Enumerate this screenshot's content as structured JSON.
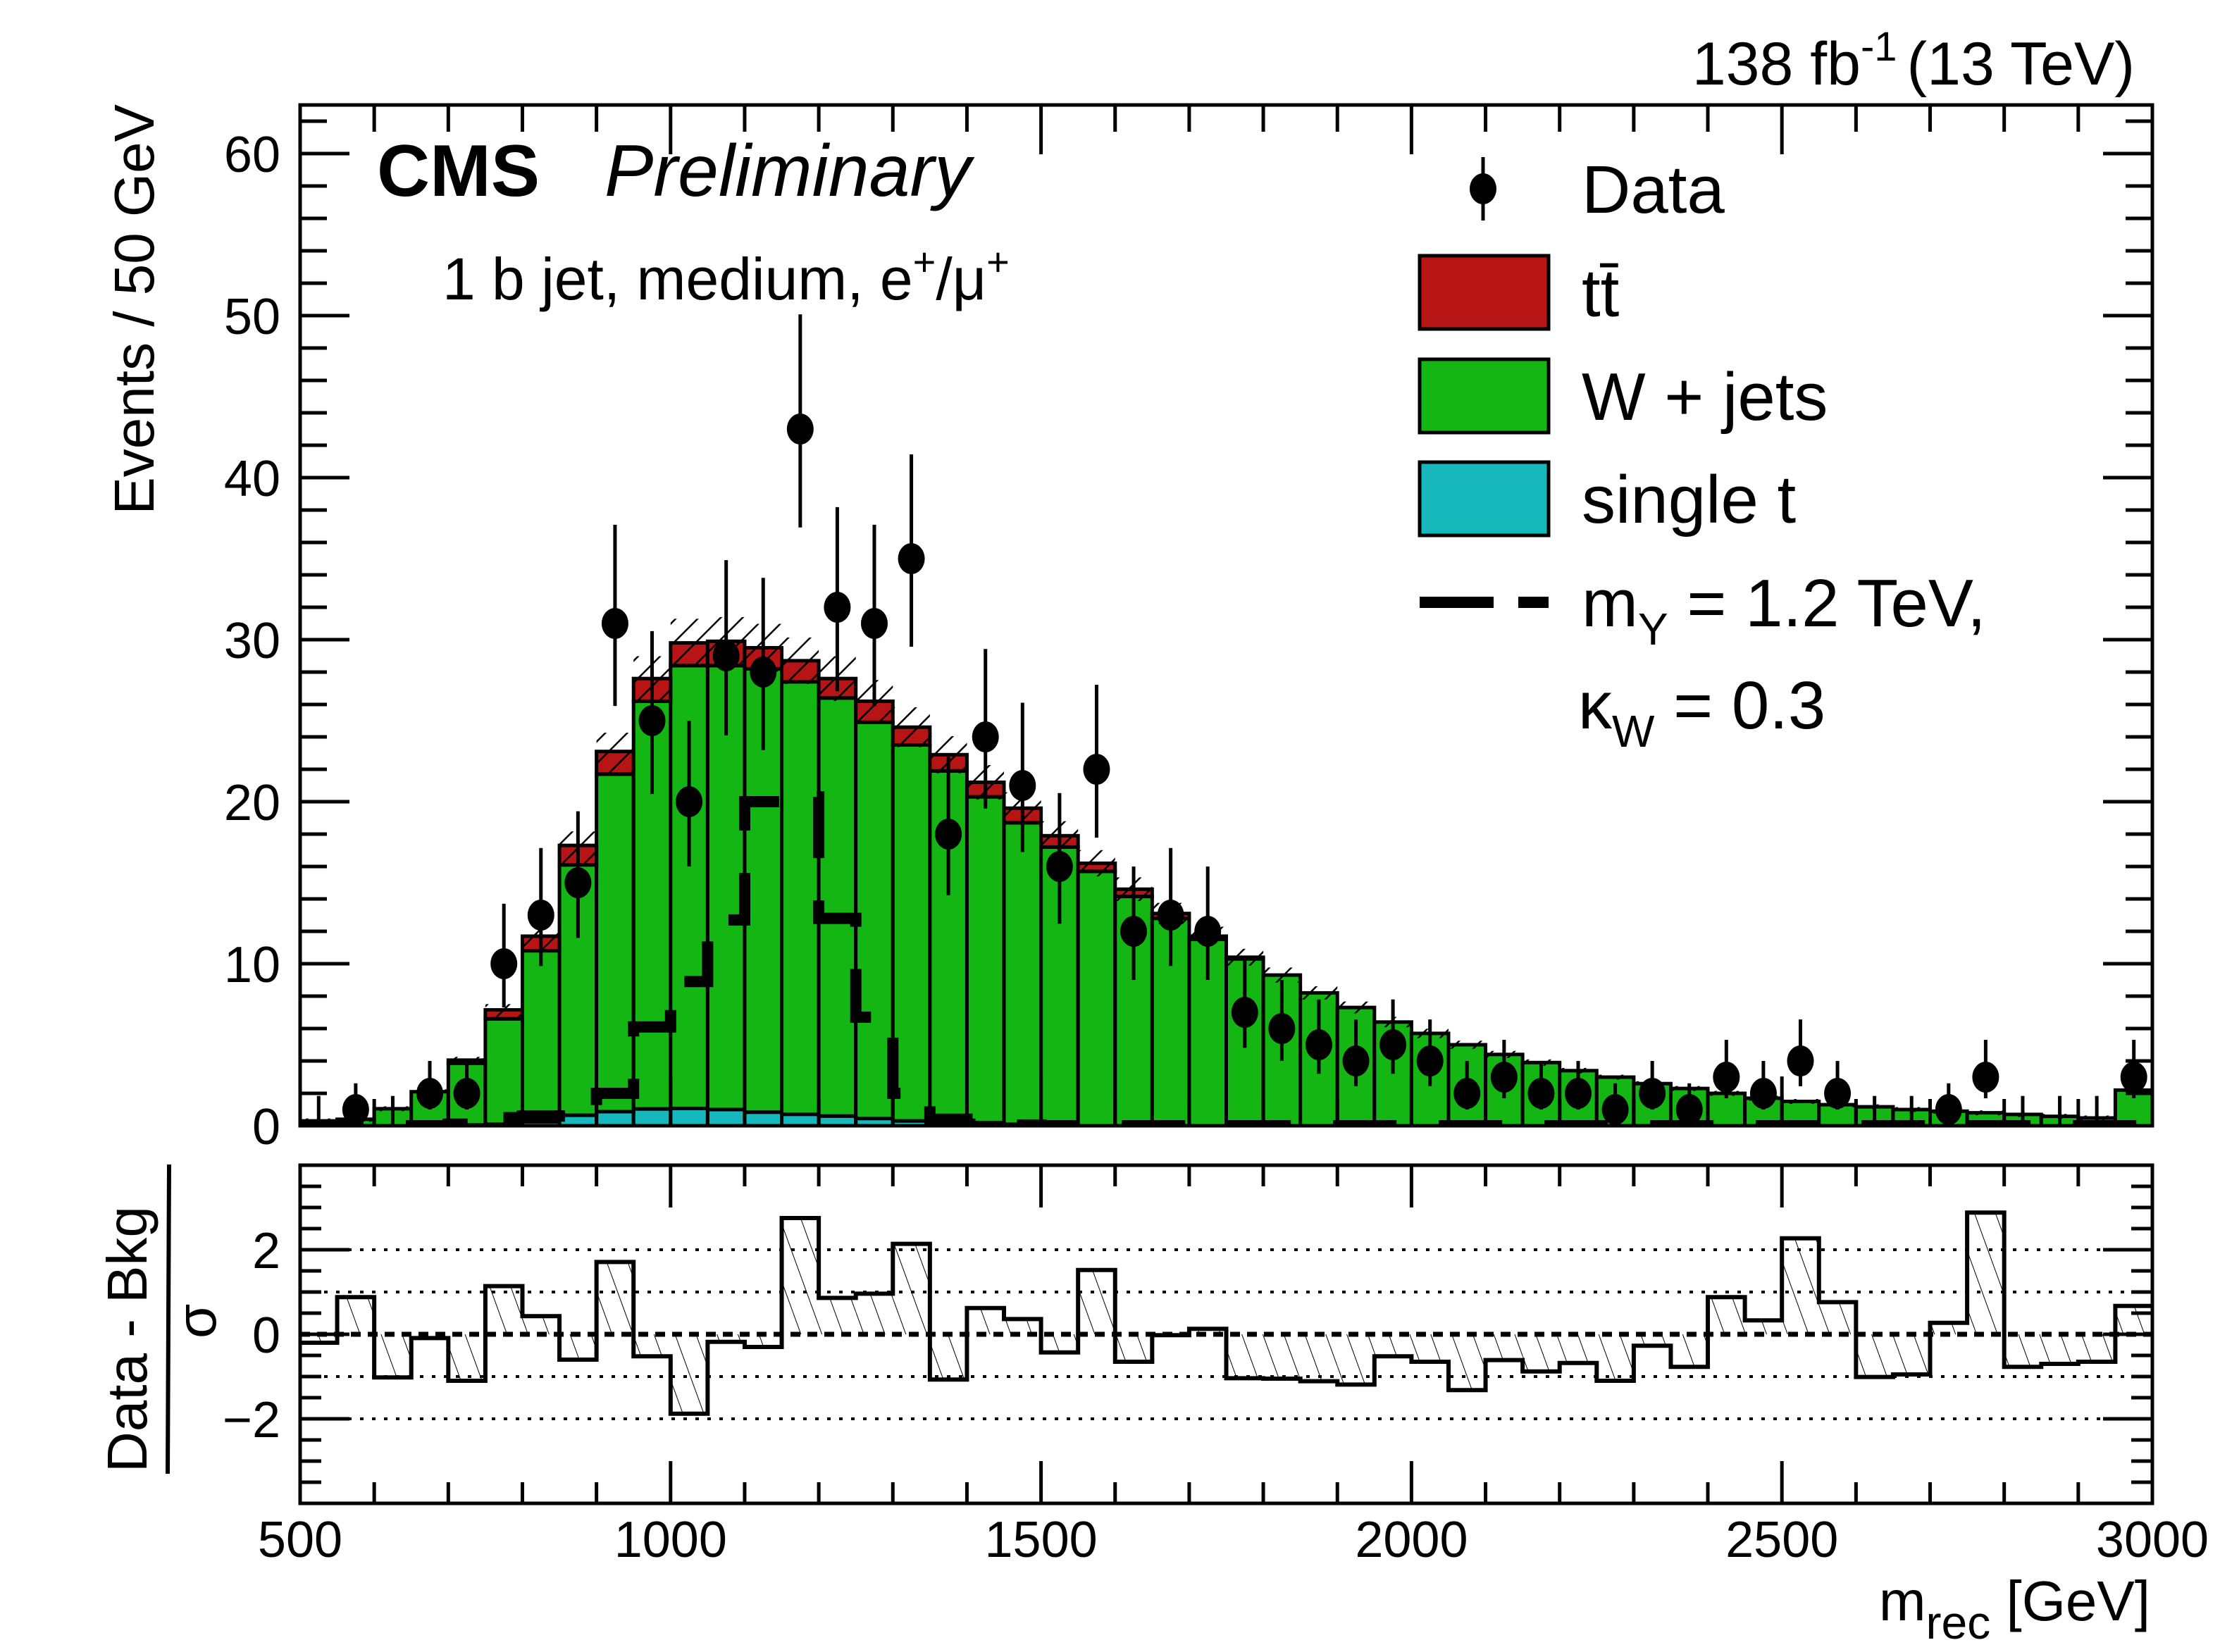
{
  "chart_data": {
    "type": "bar",
    "subtype": "stacked-histogram-with-data-points",
    "title": "",
    "header": {
      "experiment": "CMS",
      "status": "Preliminary",
      "lumi_text": "138 fb",
      "lumi_sup": "-1",
      "energy_text": "(13 TeV)",
      "region_text_main": "1 b jet, medium, e",
      "region_sup1": "+",
      "region_slash": "/μ",
      "region_sup2": "+"
    },
    "xlabel": "m",
    "xlabel_sub": "rec",
    "xlabel_unit": " [GeV]",
    "ylabel": "Events / 50 GeV",
    "xlim": [
      500,
      3000
    ],
    "ylim": [
      0,
      63
    ],
    "bin_width": 50,
    "x_ticks": [
      500,
      1000,
      1500,
      2000,
      2500,
      3000
    ],
    "x_tick_labels": [
      "500",
      "1000",
      "1500",
      "2000",
      "2500",
      "3000"
    ],
    "y_ticks": [
      0,
      10,
      20,
      30,
      40,
      50,
      60
    ],
    "y_tick_labels": [
      "0",
      "10",
      "20",
      "30",
      "40",
      "50",
      "60"
    ],
    "bin_centers": [
      525,
      575,
      625,
      675,
      725,
      775,
      825,
      875,
      925,
      975,
      1025,
      1075,
      1125,
      1175,
      1225,
      1275,
      1325,
      1375,
      1425,
      1475,
      1525,
      1575,
      1625,
      1675,
      1725,
      1775,
      1825,
      1875,
      1925,
      1975,
      2025,
      2075,
      2125,
      2175,
      2225,
      2275,
      2325,
      2375,
      2425,
      2475,
      2525,
      2575,
      2625,
      2675,
      2725,
      2775,
      2825,
      2875,
      2925,
      2975
    ],
    "series": [
      {
        "name": "single t",
        "kind": "stack",
        "color": "#16b8bb",
        "values": [
          0,
          0,
          0,
          0,
          0.05,
          0.1,
          0.25,
          0.65,
          0.87,
          1.04,
          1.07,
          1.0,
          0.84,
          0.71,
          0.6,
          0.45,
          0.3,
          0.1,
          0.2,
          0.1,
          0.05,
          0,
          0,
          0,
          0,
          0,
          0,
          0,
          0,
          0,
          0,
          0,
          0,
          0,
          0,
          0,
          0,
          0,
          0,
          0,
          0,
          0,
          0,
          0,
          0,
          0,
          0,
          0,
          0,
          0
        ]
      },
      {
        "name": "W + jets",
        "kind": "stack",
        "color": "#14b614",
        "values": [
          0.3,
          0.4,
          1.05,
          2.1,
          3.8,
          6.5,
          10.55,
          15.45,
          20.83,
          25.16,
          27.33,
          27.4,
          27.36,
          26.69,
          25.8,
          24.45,
          23.2,
          21.8,
          20.1,
          18.6,
          17.15,
          15.7,
          14.15,
          12.8,
          11.5,
          10.3,
          9.3,
          8.2,
          7.3,
          6.4,
          5.7,
          5.0,
          4.4,
          3.9,
          3.4,
          3.0,
          2.6,
          2.3,
          2.0,
          1.7,
          1.5,
          1.3,
          1.17,
          1.0,
          0.9,
          0.8,
          0.7,
          0.58,
          0.48,
          2.2
        ]
      },
      {
        "name": "t̅t",
        "legend_label": "tt̄",
        "kind": "stack",
        "color": "#b71515",
        "values": [
          0,
          0,
          0,
          0,
          0.2,
          0.55,
          0.9,
          1.2,
          1.4,
          1.4,
          1.4,
          1.5,
          1.3,
          1.3,
          1.2,
          1.3,
          1.1,
          1.0,
          0.9,
          0.9,
          0.7,
          0.5,
          0.45,
          0.3,
          0.2,
          0.1,
          0,
          0,
          0,
          0,
          0,
          0,
          0,
          0,
          0,
          0,
          0,
          0,
          0,
          0,
          0,
          0,
          0,
          0,
          0,
          0,
          0,
          0,
          0,
          0
        ]
      },
      {
        "name": "m_Y = 1.2 TeV, kappa_W = 0.3",
        "kind": "signal-line",
        "color": "#000000",
        "values": [
          0,
          0,
          0,
          0,
          0.1,
          0.5,
          0.6,
          1.0,
          2.0,
          6.1,
          8.9,
          12.7,
          20.0,
          20.3,
          12.8,
          6.7,
          2.0,
          0.4,
          0.1,
          0.05,
          0,
          0,
          0,
          0,
          0,
          0,
          0,
          0,
          0,
          0,
          0,
          0,
          0,
          0,
          0,
          0,
          0,
          0,
          0,
          0,
          0,
          0,
          0,
          0,
          0,
          0,
          0,
          0,
          0,
          0
        ]
      },
      {
        "name": "Data",
        "kind": "points",
        "color": "#000000",
        "values": [
          0,
          1,
          0,
          2,
          2,
          10,
          13,
          15,
          31,
          25,
          20,
          29,
          28,
          43,
          32,
          31,
          35,
          18,
          24,
          21,
          16,
          22,
          12,
          13,
          12,
          7,
          6,
          5,
          4,
          5,
          4,
          2,
          3,
          2,
          2,
          1,
          2,
          1,
          3,
          2,
          4,
          2,
          0,
          0,
          1,
          3,
          0,
          0,
          0,
          3
        ]
      }
    ],
    "bkg_uncertainty_fraction": 0.05,
    "legend": {
      "placement": "top-right",
      "entries": [
        {
          "label": "Data",
          "marker": "point"
        },
        {
          "label": "tt̄",
          "marker": "box",
          "color": "#b71515"
        },
        {
          "label": "W + jets",
          "marker": "box",
          "color": "#14b614"
        },
        {
          "label": "single t",
          "marker": "box",
          "color": "#16b8bb"
        },
        {
          "label": "m",
          "sub": "Y",
          "rest": " = 1.2 TeV,",
          "marker": "dashed-line"
        },
        {
          "label": "κ",
          "sub": "W",
          "rest": " = 0.3",
          "marker": "none"
        }
      ]
    },
    "ratio_panel": {
      "ylabel_num": "Data - Bkg",
      "ylabel_den": "σ",
      "ylim": [
        -4,
        4
      ],
      "y_ticks": [
        -2,
        0,
        2
      ],
      "y_tick_labels": [
        "−2",
        "0",
        "2"
      ],
      "reference_lines": [
        -2,
        -1,
        0,
        1,
        2
      ],
      "values": [
        -0.2,
        0.88,
        -1.02,
        -0.09,
        -1.1,
        1.14,
        0.43,
        -0.6,
        1.71,
        -0.52,
        -1.88,
        -0.18,
        -0.3,
        2.75,
        0.86,
        0.96,
        2.14,
        -1.07,
        0.62,
        0.36,
        -0.43,
        1.52,
        -0.65,
        -0.02,
        0.13,
        -1.04,
        -1.05,
        -1.11,
        -1.19,
        -0.52,
        -0.65,
        -1.32,
        -0.61,
        -0.88,
        -0.68,
        -1.1,
        -0.27,
        -0.77,
        0.88,
        0.33,
        2.27,
        0.76,
        -1.01,
        -0.95,
        0.27,
        2.88,
        -0.77,
        -0.7,
        -0.65,
        0.67
      ]
    }
  }
}
